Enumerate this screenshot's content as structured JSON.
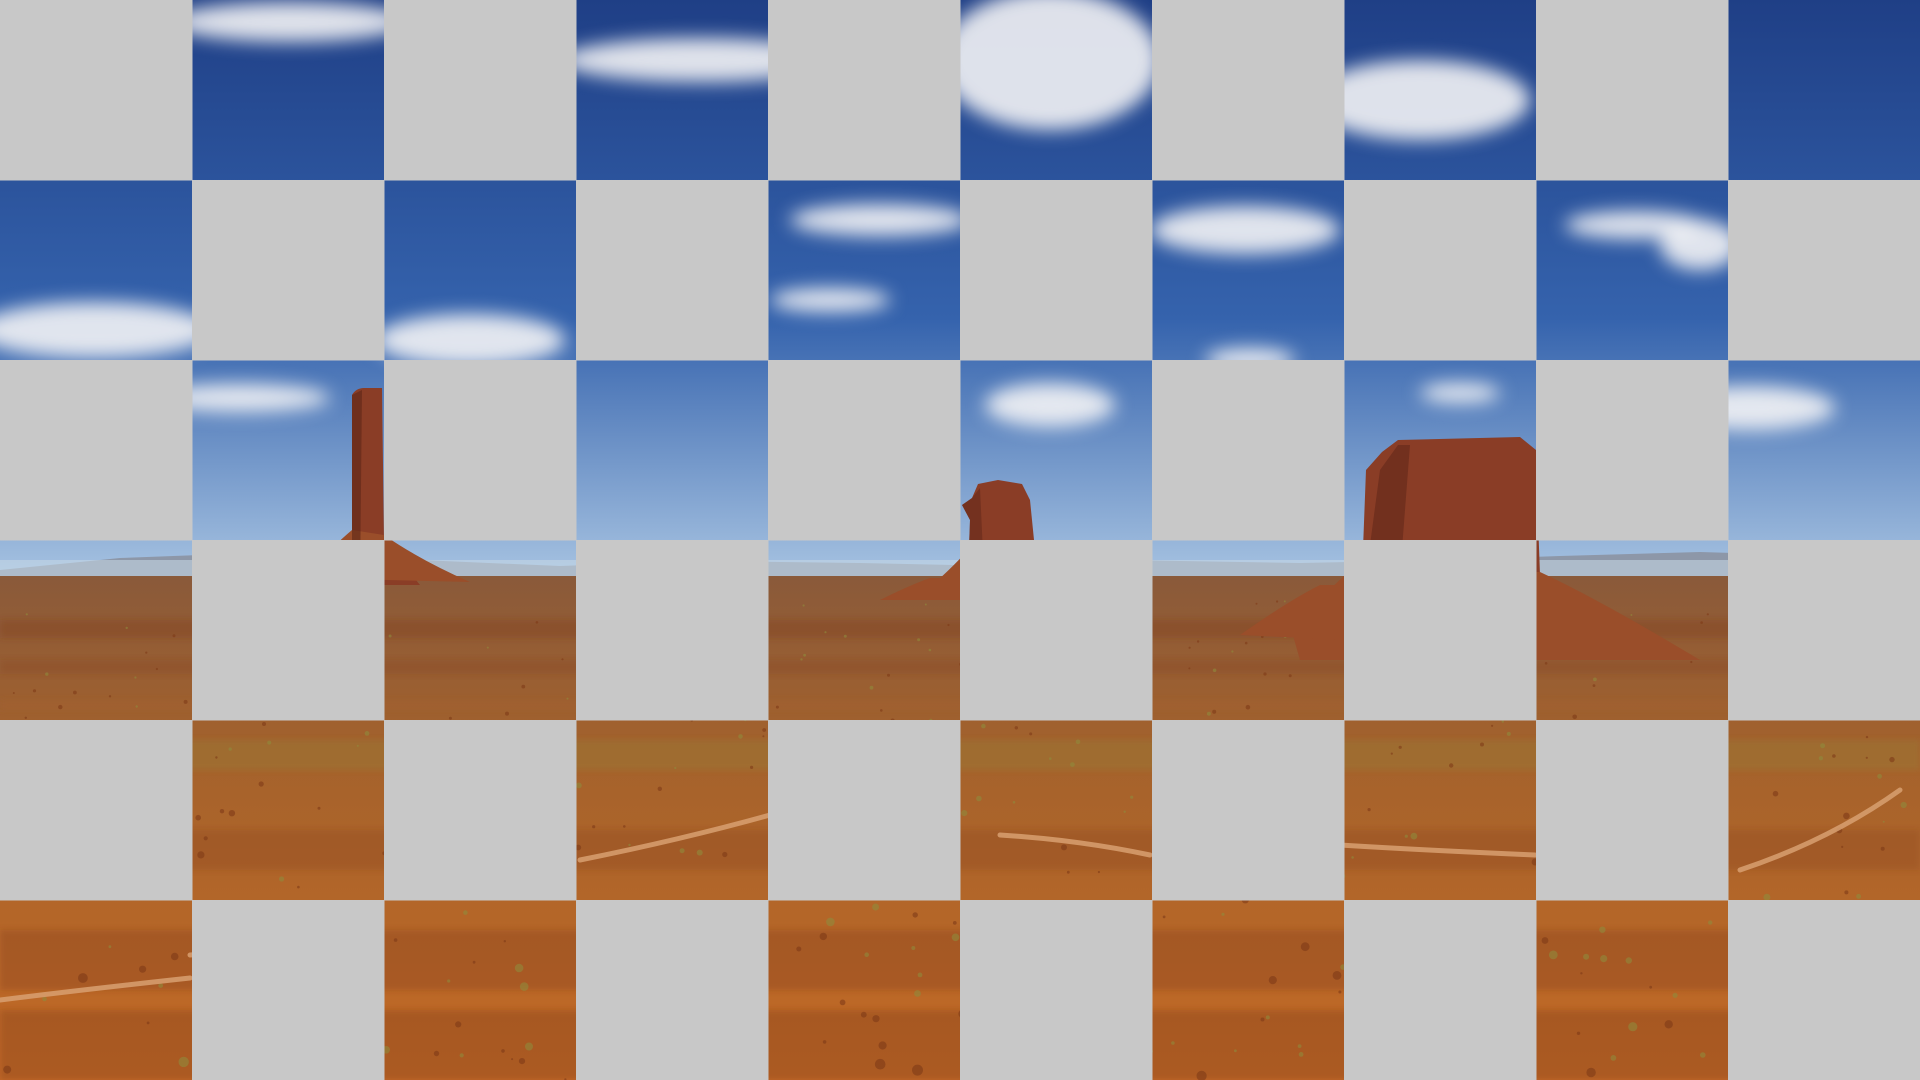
{
  "scene": {
    "grid_columns": 10,
    "grid_rows": 6,
    "mask_color": "#c8c8c8",
    "mask_pattern": "checkerboard",
    "masked_tile_parity": "even",
    "colors": {
      "sky_top": "#1f3f86",
      "sky_mid": "#3563ad",
      "sky_horizon": "#a8c4e2",
      "haze": "#c9d8e6",
      "far_mountains": "#8d97a8",
      "plain_far": "#8a5a3a",
      "plain_mid": "#a4622c",
      "ground_near": "#c46a25",
      "ground_shadow": "#7e3a18",
      "butte": "#8a3d26",
      "butte_shadow": "#5e2617",
      "talus": "#9a4e2a",
      "vegetation": "#8f8a3c",
      "road": "#d8a071",
      "cloud": "#f3f3f5"
    }
  }
}
